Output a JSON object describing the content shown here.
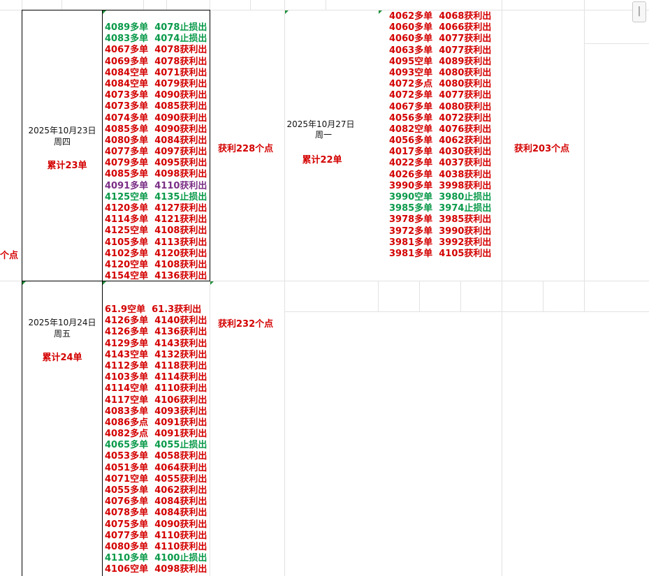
{
  "colors": {
    "profit": "#d40000",
    "stop": "#0a9a4a",
    "purple": "#7b2f86"
  },
  "left_edge": {
    "label": "个点"
  },
  "scroll_indicator": "|",
  "day_oct23": {
    "date": "2025年10月23日",
    "weekday": "周四",
    "cumulative": "累计23单",
    "profit": "获利228个点",
    "trades": [
      {
        "text": "4089多单  4078止损出",
        "color": "stop"
      },
      {
        "text": "4083多单  4074止损出",
        "color": "stop"
      },
      {
        "text": "4067多单  4078获利出",
        "color": "profit"
      },
      {
        "text": "4069多单  4078获利出",
        "color": "profit"
      },
      {
        "text": "4084空单  4071获利出",
        "color": "profit"
      },
      {
        "text": "4084空单  4079获利出",
        "color": "profit"
      },
      {
        "text": "4073多单  4090获利出",
        "color": "profit"
      },
      {
        "text": "4073多单  4085获利出",
        "color": "profit"
      },
      {
        "text": "4074多单  4090获利出",
        "color": "profit"
      },
      {
        "text": "4085多单  4090获利出",
        "color": "profit"
      },
      {
        "text": "4080多单  4084获利出",
        "color": "profit"
      },
      {
        "text": "4077多单  4097获利出",
        "color": "profit"
      },
      {
        "text": "4079多单  4095获利出",
        "color": "profit"
      },
      {
        "text": "4085多单  4098获利出",
        "color": "profit"
      },
      {
        "text": "4091多单  4110获利出",
        "color": "purple"
      },
      {
        "text": "4125空单  4135止损出",
        "color": "stop"
      },
      {
        "text": "4120多单  4127获利出",
        "color": "profit"
      },
      {
        "text": "4114多单  4121获利出",
        "color": "profit"
      },
      {
        "text": "4125空单  4108获利出",
        "color": "profit"
      },
      {
        "text": "4105多单  4113获利出",
        "color": "profit"
      },
      {
        "text": "4102多单  4120获利出",
        "color": "profit"
      },
      {
        "text": "4120空单  4108获利出",
        "color": "profit"
      },
      {
        "text": "4154空单  4136获利出",
        "color": "profit"
      }
    ]
  },
  "day_oct24": {
    "date": "2025年10月24日",
    "weekday": "周五",
    "cumulative": "累计24单",
    "profit": "获利232个点",
    "trades": [
      {
        "text": "61.9空单  61.3获利出",
        "color": "profit"
      },
      {
        "text": "4126多单  4140获利出",
        "color": "profit"
      },
      {
        "text": "4126多单  4136获利出",
        "color": "profit"
      },
      {
        "text": "4129多单  4143获利出",
        "color": "profit"
      },
      {
        "text": "4143空单  4132获利出",
        "color": "profit"
      },
      {
        "text": "4112多单  4118获利出",
        "color": "profit"
      },
      {
        "text": "4103多单  4114获利出",
        "color": "profit"
      },
      {
        "text": "4114空单  4110获利出",
        "color": "profit"
      },
      {
        "text": "4117空单  4106获利出",
        "color": "profit"
      },
      {
        "text": "4083多单  4093获利出",
        "color": "profit"
      },
      {
        "text": "4086多点  4091获利出",
        "color": "profit"
      },
      {
        "text": "4082多点  4091获利出",
        "color": "profit"
      },
      {
        "text": "4065多单  4055止损出",
        "color": "stop"
      },
      {
        "text": "4053多单  4058获利出",
        "color": "profit"
      },
      {
        "text": "4051多单  4064获利出",
        "color": "profit"
      },
      {
        "text": "4071空单  4055获利出",
        "color": "profit"
      },
      {
        "text": "4055多单  4062获利出",
        "color": "profit"
      },
      {
        "text": "4076多单  4084获利出",
        "color": "profit"
      },
      {
        "text": "4078多单  4084获利出",
        "color": "profit"
      },
      {
        "text": "4075多单  4090获利出",
        "color": "profit"
      },
      {
        "text": "4077多单  4110获利出",
        "color": "profit"
      },
      {
        "text": "4080多单  4110获利出",
        "color": "profit"
      },
      {
        "text": "4110多单  4100止损出",
        "color": "stop"
      },
      {
        "text": "4106空单  4098获利出",
        "color": "profit"
      }
    ]
  },
  "day_oct27": {
    "date": "2025年10月27日",
    "weekday": "周一",
    "cumulative": "累计22单",
    "profit": "获利203个点",
    "trades": [
      {
        "text": "4062多单  4068获利出",
        "color": "profit"
      },
      {
        "text": "4060多单  4066获利出",
        "color": "profit"
      },
      {
        "text": "4060多单  4077获利出",
        "color": "profit"
      },
      {
        "text": "4063多单  4077获利出",
        "color": "profit"
      },
      {
        "text": "4095空单  4089获利出",
        "color": "profit"
      },
      {
        "text": "4093空单  4080获利出",
        "color": "profit"
      },
      {
        "text": "4072多点  4080获利出",
        "color": "profit"
      },
      {
        "text": "4072多单  4077获利出",
        "color": "profit"
      },
      {
        "text": "4067多单  4080获利出",
        "color": "profit"
      },
      {
        "text": "4056多单  4072获利出",
        "color": "profit"
      },
      {
        "text": "4082空单  4076获利出",
        "color": "profit"
      },
      {
        "text": "4056多单  4062获利出",
        "color": "profit"
      },
      {
        "text": "4017多单  4030获利出",
        "color": "profit"
      },
      {
        "text": "4022多单  4037获利出",
        "color": "profit"
      },
      {
        "text": "4026多单  4038获利出",
        "color": "profit"
      },
      {
        "text": "3990多单  3998获利出",
        "color": "profit"
      },
      {
        "text": "3990空单  3980止损出",
        "color": "stop"
      },
      {
        "text": "3985多单  3974止损出",
        "color": "stop"
      },
      {
        "text": "3978多单  3985获利出",
        "color": "profit"
      },
      {
        "text": "3972多单  3990获利出",
        "color": "profit"
      },
      {
        "text": "3981多单  3992获利出",
        "color": "profit"
      },
      {
        "text": "3981多单  4105获利出",
        "color": "profit"
      }
    ]
  }
}
